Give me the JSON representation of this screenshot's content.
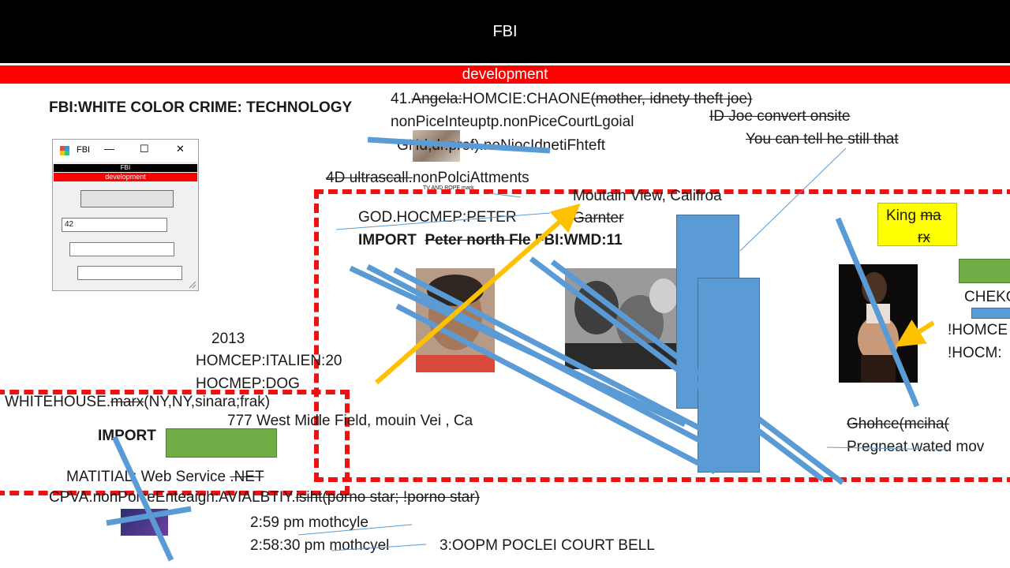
{
  "banner": {
    "title": "FBI",
    "subtitle": "development"
  },
  "heading": "FBI:WHITE COLOR CRIME: TECHNOLOGY",
  "mini_window": {
    "title": "FBI",
    "minimize": "—",
    "maximize": "☐",
    "close": "✕",
    "banner_title": "FBI",
    "banner_subtitle": "development",
    "input_value": "42"
  },
  "notes": {
    "line1_prefix": "41.",
    "line1_strike": "Angela:",
    "line1_main": "HOMCIE:CHAONE",
    "line1_tail": "(mother, idnety theft joe)",
    "line2": "nonPiceInteuptp.nonPiceCourtLgoial",
    "line3": "GHd,dr.prof).noNiocIdnetiFhteft",
    "id_joe": "ID Joe convert onsite",
    "tell": "You can tell he still that",
    "ultrascall_strike": "4D ultrascall.",
    "ultrascall_main": "nonPolciAttments",
    "tiny_caption": "TV AND ROPE mark",
    "mountain_view": "Moutain View, Califroa",
    "garnter": "Garnter",
    "god": "GOD.HOCMEP:PETER",
    "import1_label": "IMPORT",
    "import1_strike": "Peter north Fle",
    "import1_tail": "FBI:WMD:11",
    "king": "King",
    "king_strike1": "ma",
    "king_strike2": "rx",
    "chek": "CHEKO",
    "homce1": "!HOMCE",
    "homce2": "!HOCM:",
    "year": "2013",
    "italien": "HOMCEP:ITALIEN:20",
    "dog": "HOCMEP:DOG",
    "whitehouse_prefix": "WHITEHOUSE.",
    "whitehouse_strike": "marx",
    "whitehouse_tail": "(NY,NY,sinara;frak)",
    "address": "777 West Midle Field, mouin Vei , Ca",
    "import2_label": "IMPORT",
    "matitial": "MATITIAL: Web Service ",
    "matitial_strike": ".NET",
    "cpva_main": "CPVA.nonPolceEnteaigh:AVIALBTIY.",
    "cpva_strike": "isiht(porno star; !porno star)",
    "ghohce": "Ghohce(mciha(",
    "pregneat": "Pregneat wated mov",
    "time1": "2:59 pm mothcyle",
    "time2": "2:58:30 pm mothcyel",
    "court": "3:OOPM POCLEI COURT BELL"
  },
  "colors": {
    "banner_bg": "#000000",
    "red": "#ff0000",
    "blue": "#5b9bd5",
    "yellow": "#ffc000",
    "green": "#70ad47"
  }
}
